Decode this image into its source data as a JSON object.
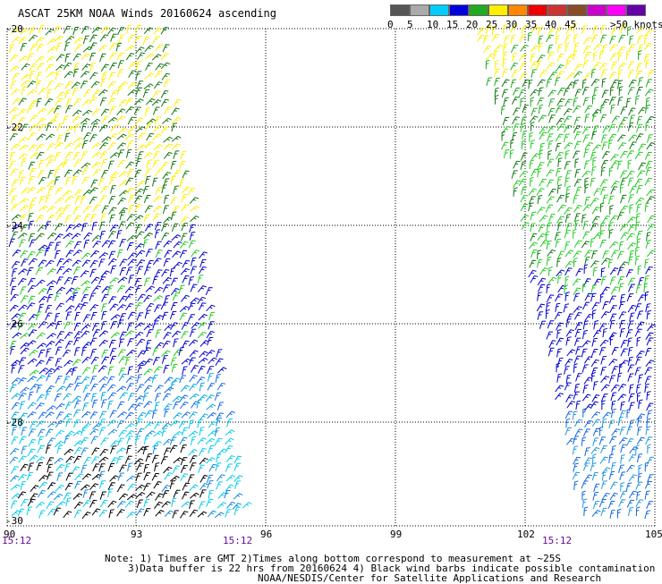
{
  "title": "ASCAT 25KM NOAA Winds 20160624 ascending",
  "legend": {
    "unit_label": ">50 knots",
    "bins": [
      {
        "label": "0",
        "color": "#555555"
      },
      {
        "label": "5",
        "color": "#aaaaaa"
      },
      {
        "label": "10",
        "color": "#00ccff"
      },
      {
        "label": "15",
        "color": "#0000dd"
      },
      {
        "label": "20",
        "color": "#22aa22"
      },
      {
        "label": "25",
        "color": "#ffee00"
      },
      {
        "label": "30",
        "color": "#ff8800"
      },
      {
        "label": "35",
        "color": "#ee0000"
      },
      {
        "label": "40",
        "color": "#cc3333"
      },
      {
        "label": "45",
        "color": "#8a4b2a"
      },
      {
        "label": "",
        "color": "#cc00cc"
      },
      {
        "label": "",
        "color": "#ff00ff"
      },
      {
        "label": "",
        "color": "#6600aa"
      }
    ]
  },
  "axes": {
    "lat_labels": [
      "-20",
      "-22",
      "-24",
      "-26",
      "-28",
      "-30"
    ],
    "lon_labels": [
      "90",
      "93",
      "96",
      "99",
      "102",
      "105"
    ]
  },
  "time_labels": [
    "15:12",
    "15:12",
    "15:12"
  ],
  "notes": {
    "line1": "Note: 1) Times are GMT 2)Times along bottom correspond to measurement at ~25S",
    "line2": "3)Data buffer is 22 hrs from 20160624 4) Black wind barbs indicate possible contamination",
    "line3": "NOAA/NESDIS/Center for Satellite Applications and Research"
  }
}
